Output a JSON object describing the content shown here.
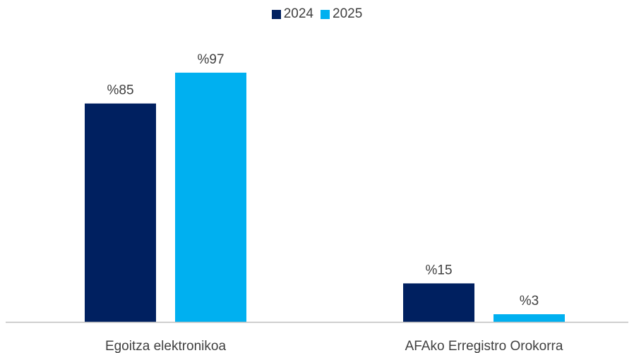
{
  "chart_data": {
    "type": "bar",
    "categories": [
      "Egoitza elektronikoa",
      "AFAko Erregistro Orokorra"
    ],
    "series": [
      {
        "name": "2024",
        "values": [
          85,
          15
        ],
        "labels": [
          "%85",
          "%15"
        ],
        "color": "#002060"
      },
      {
        "name": "2025",
        "values": [
          97,
          3
        ],
        "labels": [
          "%97",
          "%3"
        ],
        "color": "#00B0F0"
      }
    ],
    "ylim": [
      0,
      100
    ],
    "grid": false,
    "legend_position": "top-center",
    "axis_color": "#BFBFBF"
  }
}
